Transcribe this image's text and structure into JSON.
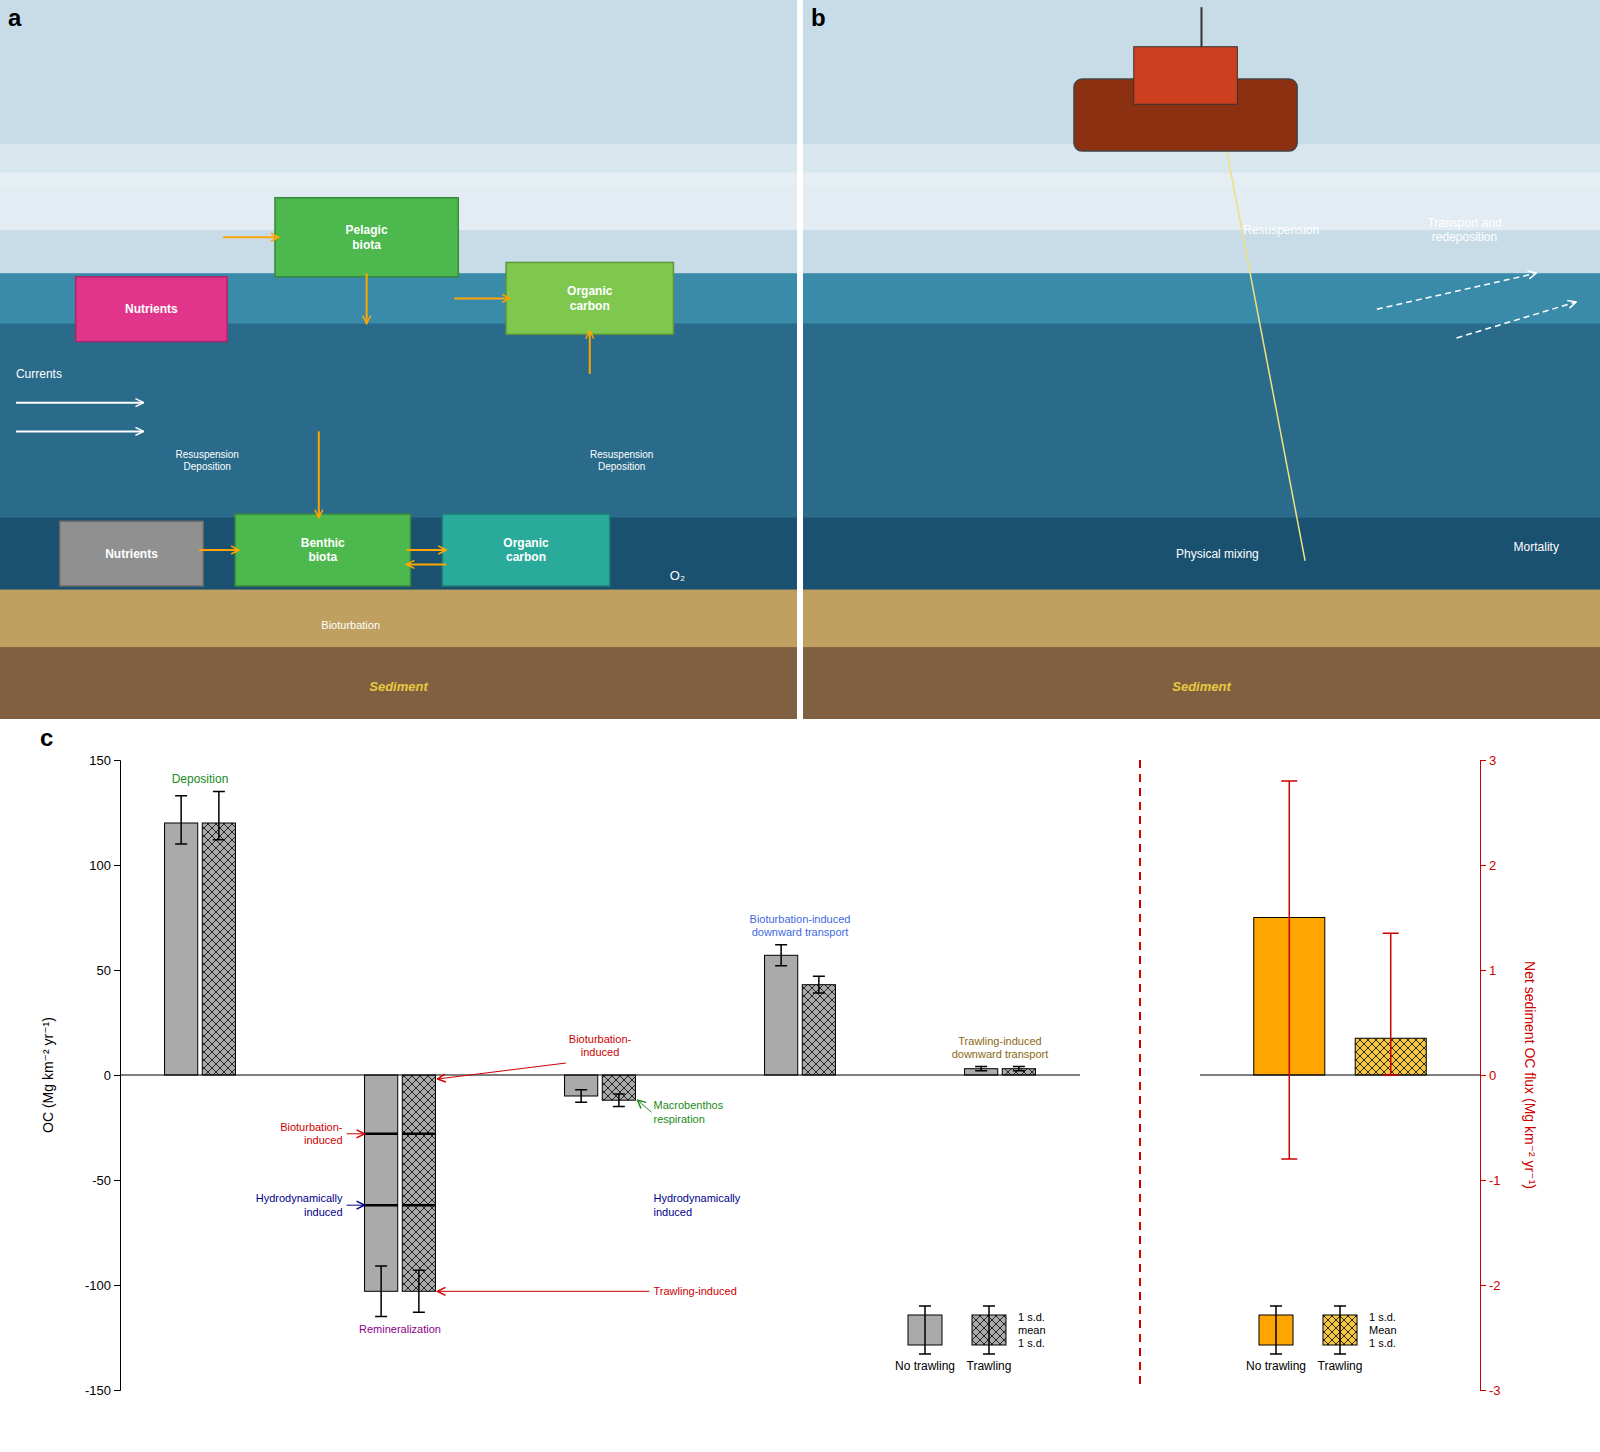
{
  "chart_data": [
    {
      "type": "diagram",
      "title": "a",
      "colors": [
        "#c8dce8",
        "#e8f0f4",
        "#3a8aaa",
        "#2a6a8a",
        "#1a5070",
        "#c0a060",
        "#806040"
      ],
      "arrow_colors": [
        "white",
        "#FFA500"
      ],
      "boxes": [
        {
          "text": "Pelagic\nbiota",
          "color": "#4db84e"
        },
        {
          "text": "Organic\ncarbon",
          "color": "#7ec850"
        },
        {
          "text": "Nutrients",
          "color": "#e0358a"
        },
        {
          "text": "Benthic\nbiota",
          "color": "#4db84e"
        },
        {
          "text": "Organic\ncarbon",
          "color": "#2aaa9a"
        },
        {
          "text": "Nutrients",
          "color": "#909090"
        }
      ],
      "annotations": [
        {
          "text": "Currents",
          "color": "white"
        },
        {
          "text": "Resuspension\nDeposition",
          "color": "white"
        },
        {
          "text": "Resuspension\nDeposition",
          "color": "white"
        },
        {
          "text": "O₂",
          "color": "white"
        },
        {
          "text": "Bioturbation",
          "color": "white"
        },
        {
          "text": "Sediment",
          "color": "#e8c840"
        }
      ]
    },
    {
      "type": "diagram",
      "title": "b",
      "colors": [
        "#c8dce8",
        "#e8f0f4",
        "#3a8aaa",
        "#2a6a8a",
        "#1a5070",
        "#c0a060",
        "#806040"
      ],
      "arrow_colors": [
        "white"
      ],
      "icon_colors": [
        "#8B3010",
        "#cc4020",
        "#333333",
        "#f0e080"
      ],
      "annotations": [
        {
          "text": "Resuspension",
          "color": "white"
        },
        {
          "text": "Transport and\nredeposition",
          "color": "white"
        },
        {
          "text": "Physical mixing",
          "color": "white"
        },
        {
          "text": "Mortality",
          "color": "white"
        },
        {
          "text": "Sediment",
          "color": "#e8c840"
        }
      ]
    },
    {
      "type": "bar",
      "title": "c",
      "y_label": "OC (Mg km⁻² yr⁻¹)",
      "categories": [
        null,
        null,
        null,
        null,
        null
      ],
      "series": [
        {
          "name": "No trawling",
          "color": "#aaaaaa",
          "values": [
            120,
            -103,
            -10,
            57,
            3
          ],
          "err_lo": [
            10,
            12,
            3,
            5,
            1
          ],
          "err_hi": [
            13,
            12,
            3,
            5,
            1
          ],
          "dividers": [
            [],
            [
              -28,
              -62
            ],
            [],
            [],
            []
          ]
        },
        {
          "name": "Trawling",
          "color": "#aaaaaa",
          "values": [
            120,
            -103,
            -12,
            43,
            3
          ],
          "err_lo": [
            8,
            10,
            3,
            4,
            1
          ],
          "err_hi": [
            15,
            10,
            3,
            4,
            1
          ],
          "dividers": [
            [],
            [
              -28,
              -62
            ],
            [],
            [],
            []
          ]
        }
      ],
      "ylim": [
        -150,
        150
      ],
      "yticks": [
        -150,
        -100,
        -50,
        0,
        50,
        100,
        150
      ],
      "tick_labels": "y",
      "legend": "lower right",
      "error_legend": "1 s.d.\nmean\n1 s.d.",
      "annotations": [
        {
          "text": "Deposition",
          "color": "#228B22"
        },
        {
          "text": "Bioturbation-\ninduced",
          "color": "#cc0000"
        },
        {
          "text": "Hydrodynamically\ninduced",
          "color": "#00008B"
        },
        {
          "text": "Remineralization",
          "color": "#8B008B"
        },
        {
          "text": "Bioturbation-\ninduced",
          "color": "#cc0000"
        },
        {
          "text": "Macrobenthos\nrespiration",
          "color": "#228B22"
        },
        {
          "text": "Hydrodynamically\ninduced",
          "color": "#00008B"
        },
        {
          "text": "Trawling-induced",
          "color": "#cc0000"
        },
        {
          "text": "Bioturbation-induced\ndownward transport",
          "color": "#4169E1"
        },
        {
          "text": "Trawling-induced\ndownward transport",
          "color": "#8B6914"
        }
      ]
    },
    {
      "type": "bar",
      "y_label": "Net sediment OC flux (Mg km⁻² yr⁻¹)",
      "color": "#cc0000",
      "categories": [
        null
      ],
      "series": [
        {
          "name": "No trawling",
          "color": "#FFA500",
          "values": [
            1.5
          ],
          "err_lo": [
            2.3
          ],
          "err_hi": [
            1.3
          ]
        },
        {
          "name": "Trawling",
          "color": "#f5c842",
          "values": [
            0.35
          ],
          "err_lo": [
            0.35
          ],
          "err_hi": [
            1.0
          ]
        }
      ],
      "ylim": [
        -3,
        3
      ],
      "yticks": [
        -3,
        -2,
        -1,
        0,
        1,
        2,
        3
      ],
      "tick_labels": "y",
      "legend": "lower center",
      "error_legend": "1 s.d.\nMean\n1 s.d."
    }
  ]
}
